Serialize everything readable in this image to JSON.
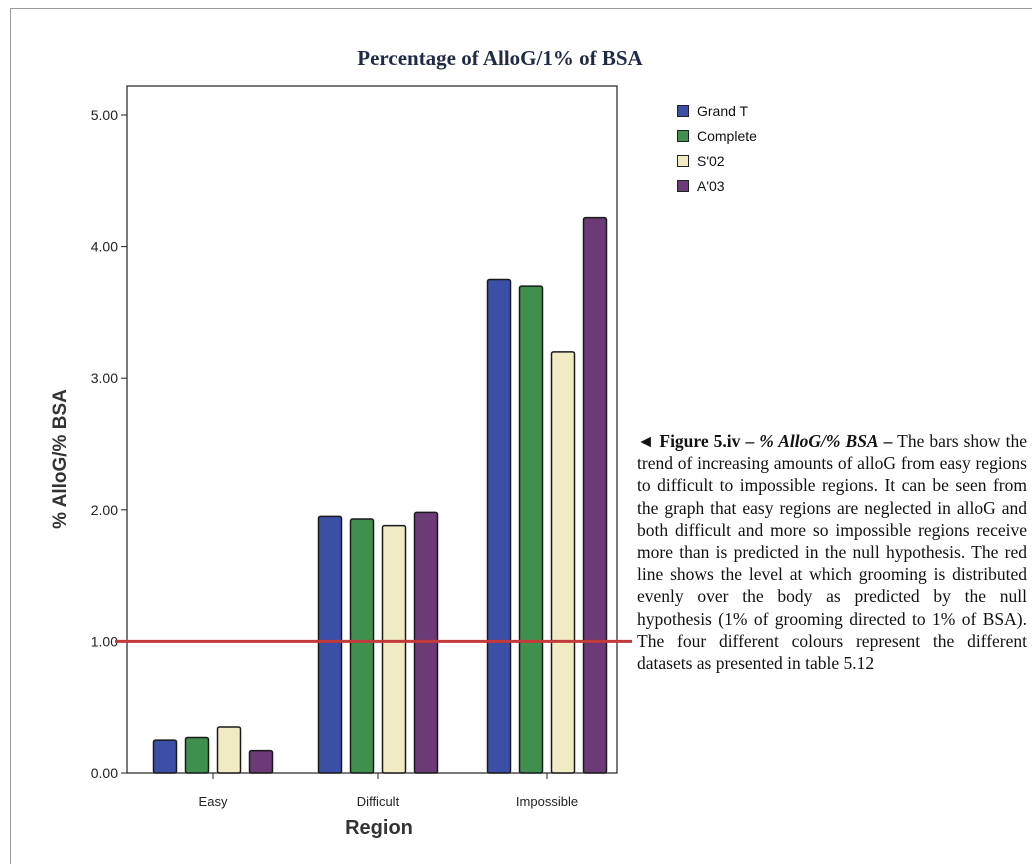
{
  "chart_data": {
    "type": "bar",
    "title": "Percentage of AlloG/1% of BSA",
    "xlabel": "Region",
    "ylabel": "% AlloG/% BSA",
    "categories": [
      "Easy",
      "Difficult",
      "Impossible"
    ],
    "series": [
      {
        "name": "Grand T",
        "color": "#3c4fa6",
        "values": [
          0.25,
          1.95,
          3.75
        ]
      },
      {
        "name": "Complete",
        "color": "#3f8f4f",
        "values": [
          0.27,
          1.93,
          3.7
        ]
      },
      {
        "name": "S'02",
        "color": "#f1ebc4",
        "values": [
          0.35,
          1.88,
          3.2
        ]
      },
      {
        "name": "A'03",
        "color": "#6b3a77",
        "values": [
          0.17,
          1.98,
          4.22
        ]
      }
    ],
    "ylim": [
      0,
      5
    ],
    "yticks": [
      "0.00",
      "1.00",
      "2.00",
      "3.00",
      "4.00",
      "5.00"
    ],
    "reference_line": {
      "value": 1.0,
      "color": "#c23a3a"
    },
    "legend": "top-right",
    "grid": false
  },
  "caption": {
    "prefix": "◄ Figure 5.iv –",
    "italic": " % AlloG/% BSA",
    "dash": " –",
    "body": " The bars show the trend of increasing amounts of alloG from easy regions to difficult to impossible regions. It can be seen from the graph that easy regions are neglected in alloG and both difficult and more so impossible regions receive more than is predicted in the null hypothesis. The red line shows the level at which grooming is distributed evenly over the body as predicted by the null hypothesis (1% of grooming directed to 1% of BSA). The four different colours represent the different datasets as presented in table 5.12"
  }
}
